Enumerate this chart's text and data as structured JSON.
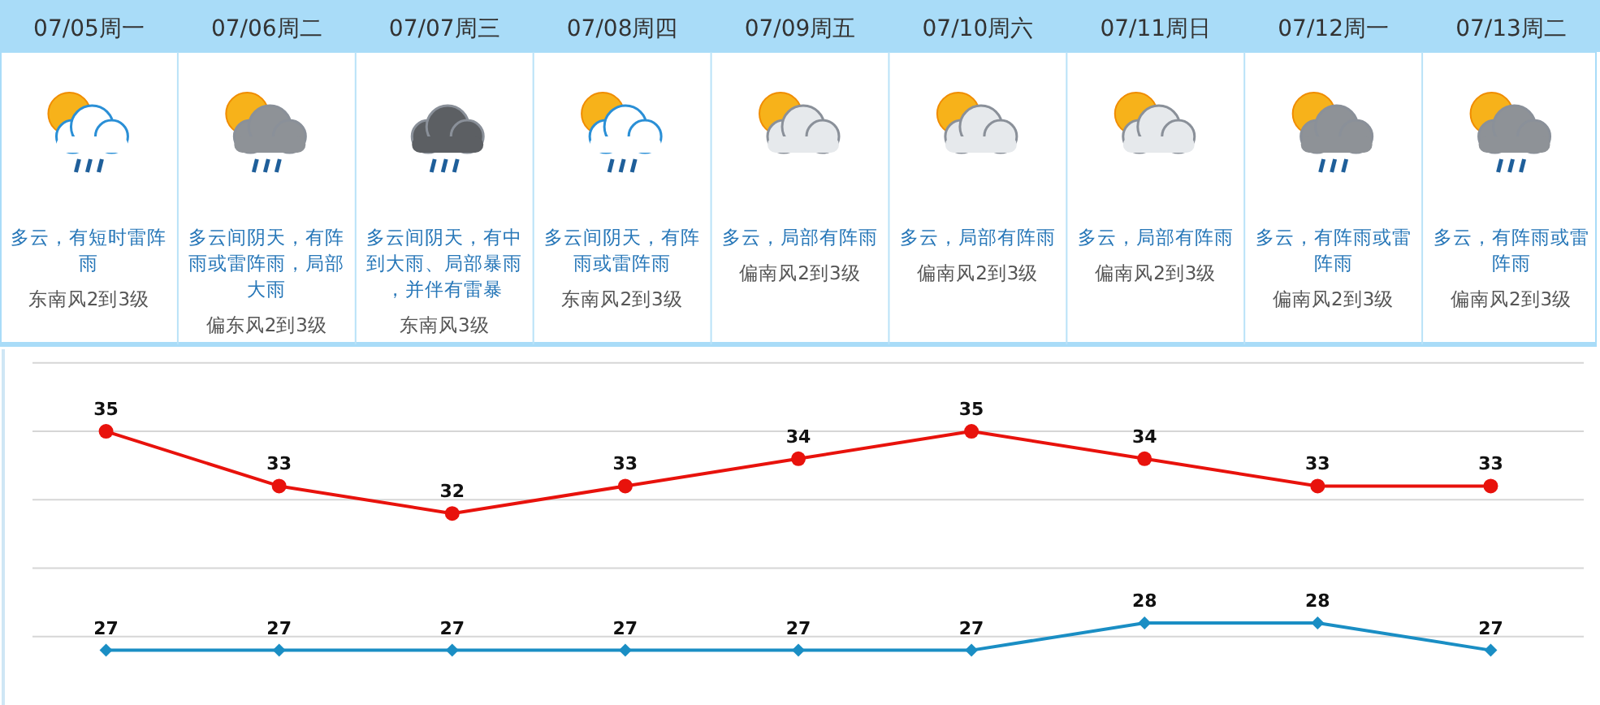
{
  "chart_data": [
    {
      "type": "other",
      "categories": [
        "07/05周一",
        "07/06周二",
        "07/07周三",
        "07/08周四",
        "07/09周五",
        "07/10周六",
        "07/11周日",
        "07/12周一",
        "07/13周二"
      ],
      "annotations": [
        "多云，有短时雷阵雨",
        "东南风2到3级",
        "多云间阴天，有阵雨或雷阵雨，局部大雨",
        "偏东风2到3级",
        "多云间阴天，有中到大雨、局部暴雨，并伴有雷暴",
        "东南风3级",
        "多云间阴天，有阵雨或雷阵雨",
        "东南风2到3级",
        "多云，局部有阵雨",
        "偏南风2到3级",
        "多云，局部有阵雨",
        "偏南风2到3级",
        "多云，局部有阵雨",
        "偏南风2到3级",
        "多云，有阵雨或雷阵雨",
        "偏南风2到3级",
        "多云，有阵雨或雷阵雨",
        "偏南风2到3级"
      ]
    },
    {
      "type": "line",
      "categories": [
        null,
        null,
        null,
        null,
        null,
        null,
        null,
        null,
        null
      ],
      "series": [
        {
          "color": "#e8120c",
          "marker": "circle",
          "values": [
            35,
            33,
            32,
            33,
            34,
            35,
            34,
            33,
            33
          ]
        },
        {
          "color": "#1a8ec4",
          "marker": "diamond",
          "values": [
            27,
            27,
            27,
            27,
            27,
            27,
            28,
            28,
            27
          ]
        }
      ],
      "yticks": [
        {
          "value": 27.5,
          "label": null
        },
        {
          "value": 30,
          "label": null
        },
        {
          "value": 32.5,
          "label": null
        },
        {
          "value": 35,
          "label": null
        },
        {
          "value": 37.5,
          "label": null
        }
      ],
      "grid": "y",
      "data_labels": true
    }
  ]
}
